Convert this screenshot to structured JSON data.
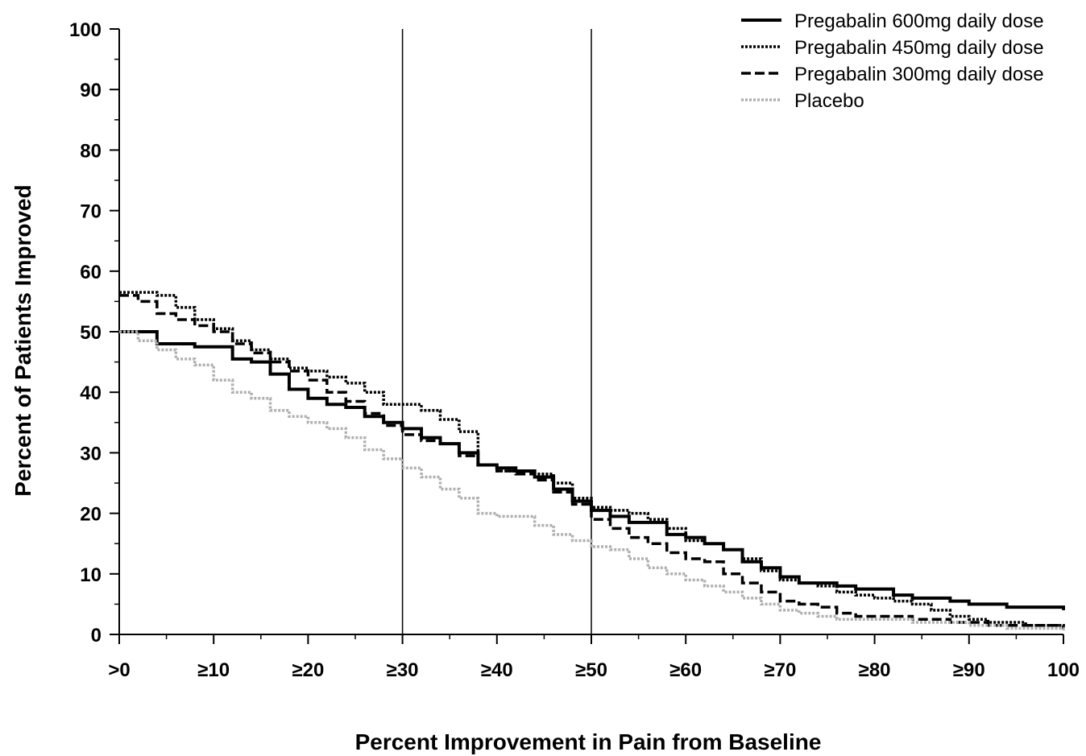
{
  "chart_data": {
    "type": "line",
    "title": "",
    "xlabel": "Percent Improvement in Pain from Baseline",
    "ylabel": "Percent of Patients Improved",
    "xlim": [
      0,
      100
    ],
    "ylim": [
      0,
      100
    ],
    "x_ticks": [
      0,
      10,
      20,
      30,
      40,
      50,
      60,
      70,
      80,
      90,
      100
    ],
    "x_tick_labels": [
      ">0",
      "≥10",
      "≥20",
      "≥30",
      "≥40",
      "≥50",
      "≥60",
      "≥70",
      "≥80",
      "≥90",
      "100"
    ],
    "y_ticks": [
      0,
      10,
      20,
      30,
      40,
      50,
      60,
      70,
      80,
      90,
      100
    ],
    "y_tick_labels": [
      "0",
      "10",
      "20",
      "30",
      "40",
      "50",
      "60",
      "70",
      "80",
      "90",
      "100"
    ],
    "reference_lines_x": [
      30,
      50
    ],
    "grid": false,
    "legend_position": "top-right",
    "series": [
      {
        "name": "Pregabalin 600mg daily dose",
        "color": "#000000",
        "style": "solid",
        "x": [
          0,
          2,
          4,
          6,
          8,
          10,
          12,
          14,
          16,
          18,
          20,
          22,
          24,
          26,
          28,
          30,
          32,
          34,
          36,
          38,
          40,
          42,
          44,
          46,
          48,
          50,
          52,
          54,
          56,
          58,
          60,
          62,
          64,
          66,
          68,
          70,
          72,
          74,
          76,
          78,
          80,
          82,
          84,
          86,
          88,
          90,
          92,
          94,
          96,
          98,
          100
        ],
        "y": [
          50,
          50,
          48,
          48,
          47.5,
          47.5,
          45.5,
          45,
          43,
          40.5,
          39,
          38,
          37.5,
          36,
          35,
          34,
          32.5,
          31.5,
          30,
          28,
          27.5,
          27,
          26,
          24,
          22,
          20.5,
          19.5,
          18.5,
          18.5,
          16.5,
          16,
          15,
          14,
          12,
          11,
          9.5,
          8.5,
          8.5,
          8,
          7.5,
          7.5,
          6.5,
          6,
          6,
          5.5,
          5,
          5,
          4.5,
          4.5,
          4.5,
          4
        ]
      },
      {
        "name": "Pregabalin 450mg daily dose",
        "color": "#000000",
        "style": "dotted",
        "x": [
          0,
          2,
          4,
          6,
          8,
          10,
          12,
          14,
          16,
          18,
          20,
          22,
          24,
          26,
          28,
          30,
          32,
          34,
          36,
          38,
          40,
          42,
          44,
          46,
          48,
          50,
          52,
          54,
          56,
          58,
          60,
          62,
          64,
          66,
          68,
          70,
          72,
          74,
          76,
          78,
          80,
          82,
          84,
          86,
          88,
          90,
          92,
          94,
          96,
          98,
          100
        ],
        "y": [
          56.5,
          56.5,
          56,
          54,
          52,
          50.5,
          48.5,
          47,
          45.5,
          44,
          43.5,
          42.5,
          41.5,
          40,
          38,
          38,
          37,
          35.5,
          33.5,
          28,
          27,
          27,
          26.5,
          25,
          22.5,
          21,
          20.5,
          20,
          19,
          17.5,
          15.5,
          15,
          14,
          12.5,
          10.5,
          9,
          8.5,
          8,
          7,
          6.5,
          6,
          5.5,
          5,
          4,
          3,
          2.5,
          2,
          2,
          1.5,
          1.5,
          1
        ]
      },
      {
        "name": "Pregabalin 300mg daily dose",
        "color": "#000000",
        "style": "dashed",
        "x": [
          0,
          2,
          4,
          6,
          8,
          10,
          12,
          14,
          16,
          18,
          20,
          22,
          24,
          26,
          28,
          30,
          32,
          34,
          36,
          38,
          40,
          42,
          44,
          46,
          48,
          50,
          52,
          54,
          56,
          58,
          60,
          62,
          64,
          66,
          68,
          70,
          72,
          74,
          76,
          78,
          80,
          82,
          84,
          86,
          88,
          90,
          92,
          94,
          96,
          98,
          100
        ],
        "y": [
          56,
          55,
          53,
          52,
          51,
          50,
          48,
          46.5,
          45,
          43.5,
          42,
          40,
          38.5,
          36.5,
          34.5,
          33,
          32,
          31.5,
          29.5,
          28,
          27,
          26.5,
          25.5,
          23.5,
          21.5,
          19,
          17.5,
          16,
          15,
          13.5,
          12.5,
          12,
          10,
          8.5,
          7,
          5.5,
          5,
          4.5,
          3.5,
          3,
          3,
          3,
          2.5,
          2.5,
          2,
          2,
          1.5,
          1.5,
          1.5,
          1.5,
          1
        ]
      },
      {
        "name": "Placebo",
        "color": "#b0b0b0",
        "style": "dotted",
        "x": [
          0,
          2,
          4,
          6,
          8,
          10,
          12,
          14,
          16,
          18,
          20,
          22,
          24,
          26,
          28,
          30,
          32,
          34,
          36,
          38,
          40,
          42,
          44,
          46,
          48,
          50,
          52,
          54,
          56,
          58,
          60,
          62,
          64,
          66,
          68,
          70,
          72,
          74,
          76,
          78,
          80,
          82,
          84,
          86,
          88,
          90,
          92,
          94,
          96,
          98,
          100
        ],
        "y": [
          50,
          48.5,
          47,
          45.5,
          44.5,
          42,
          40,
          39,
          37,
          36,
          35,
          34,
          32.5,
          30.5,
          29,
          27.5,
          26,
          24,
          22.5,
          20,
          19.5,
          19.5,
          18,
          16.5,
          15.5,
          14.5,
          14,
          12.5,
          11,
          10,
          9,
          8,
          7,
          6,
          5,
          4,
          3.5,
          3,
          2.5,
          2.5,
          2.5,
          2.5,
          2,
          2,
          2,
          1.5,
          1.5,
          1,
          1,
          1,
          0.5
        ]
      }
    ]
  }
}
